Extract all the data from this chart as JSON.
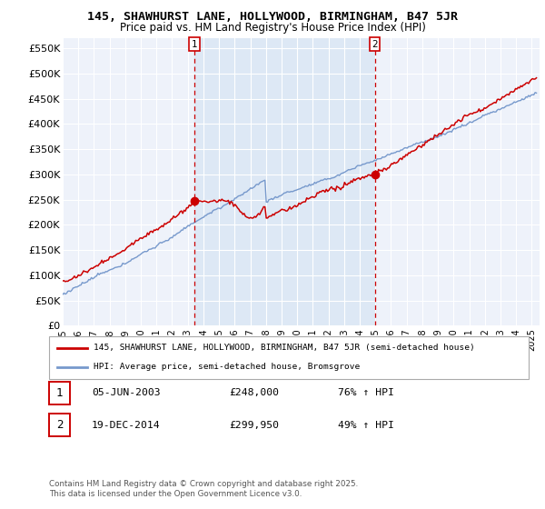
{
  "title": "145, SHAWHURST LANE, HOLLYWOOD, BIRMINGHAM, B47 5JR",
  "subtitle": "Price paid vs. HM Land Registry's House Price Index (HPI)",
  "ylabel_ticks": [
    "£0",
    "£50K",
    "£100K",
    "£150K",
    "£200K",
    "£250K",
    "£300K",
    "£350K",
    "£400K",
    "£450K",
    "£500K",
    "£550K"
  ],
  "ytick_values": [
    0,
    50000,
    100000,
    150000,
    200000,
    250000,
    300000,
    350000,
    400000,
    450000,
    500000,
    550000
  ],
  "ylim": [
    0,
    570000
  ],
  "xlim_start": 1995.0,
  "xlim_end": 2025.5,
  "sale1_date": 2003.43,
  "sale1_price": 248000,
  "sale1_label": "1",
  "sale1_info": "05-JUN-2003",
  "sale1_price_str": "£248,000",
  "sale1_hpi": "76% ↑ HPI",
  "sale2_date": 2014.96,
  "sale2_price": 299950,
  "sale2_label": "2",
  "sale2_info": "19-DEC-2014",
  "sale2_price_str": "£299,950",
  "sale2_hpi": "49% ↑ HPI",
  "legend_line1": "145, SHAWHURST LANE, HOLLYWOOD, BIRMINGHAM, B47 5JR (semi-detached house)",
  "legend_line2": "HPI: Average price, semi-detached house, Bromsgrove",
  "footer": "Contains HM Land Registry data © Crown copyright and database right 2025.\nThis data is licensed under the Open Government Licence v3.0.",
  "red_color": "#cc0000",
  "blue_color": "#7799cc",
  "shade_color": "#dde8f5",
  "bg_color": "#eef2fa"
}
